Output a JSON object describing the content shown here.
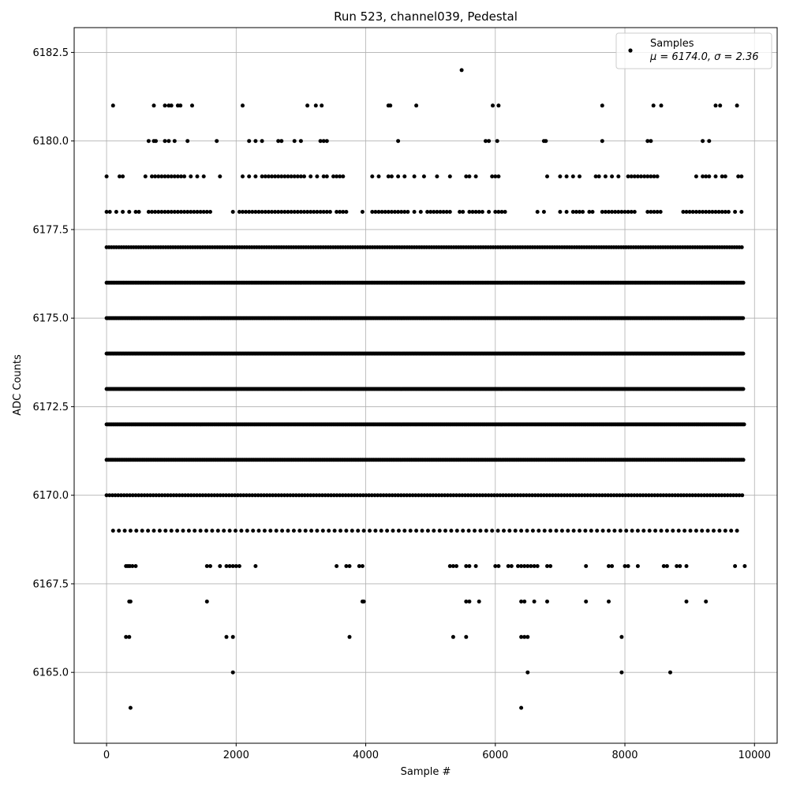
{
  "chart_data": {
    "type": "scatter",
    "title": "Run 523, channel039, Pedestal",
    "xlabel": "Sample #",
    "ylabel": "ADC Counts",
    "xlim": [
      -500,
      10350
    ],
    "ylim": [
      6163.0,
      6183.2
    ],
    "x_ticks": [
      0,
      2000,
      4000,
      6000,
      8000,
      10000
    ],
    "x_tick_labels": [
      "0",
      "2000",
      "4000",
      "6000",
      "8000",
      "10000"
    ],
    "y_ticks": [
      6165.0,
      6167.5,
      6170.0,
      6172.5,
      6175.0,
      6177.5,
      6180.0,
      6182.5
    ],
    "y_tick_labels": [
      "6165.0",
      "6167.5",
      "6170.0",
      "6172.5",
      "6175.0",
      "6177.5",
      "6180.0",
      "6182.5"
    ],
    "grid": true,
    "legend_position": "top-right",
    "legend": {
      "label": "Samples",
      "stats": "μ = 6174.0, σ = 2.36"
    },
    "colors": {
      "marker": "#000000",
      "grid": "#b0b0b0",
      "legend_border": "#cccccc"
    },
    "series": [
      {
        "name": "Samples",
        "points_by_level": {
          "6182": [
            5480
          ],
          "6181": [
            100,
            730,
            900,
            960,
            1000,
            1100,
            1140,
            1320,
            2100,
            3100,
            3230,
            3320,
            4350,
            4380,
            4780,
            5960,
            6050,
            7650,
            8440,
            8560,
            9400,
            9470,
            9730
          ],
          "6180": [
            650,
            730,
            760,
            900,
            960,
            1050,
            1250,
            1700,
            2200,
            2300,
            2400,
            2650,
            2700,
            2900,
            3000,
            3300,
            3350,
            3400,
            4500,
            5850,
            5900,
            6030,
            6750,
            6780,
            7650,
            8350,
            8400,
            9200,
            9300
          ],
          "6179": [
            0,
            200,
            250,
            600,
            700,
            750,
            800,
            850,
            900,
            950,
            1000,
            1050,
            1100,
            1150,
            1200,
            1300,
            1400,
            1500,
            1750,
            2100,
            2200,
            2300,
            2400,
            2450,
            2500,
            2550,
            2600,
            2650,
            2700,
            2750,
            2800,
            2850,
            2900,
            2950,
            3000,
            3050,
            3150,
            3250,
            3350,
            3400,
            3500,
            3550,
            3600,
            3650,
            4100,
            4200,
            4350,
            4400,
            4500,
            4600,
            4750,
            4900,
            5100,
            5300,
            5550,
            5600,
            5700,
            5950,
            6000,
            6050,
            6800,
            7000,
            7100,
            7200,
            7300,
            7550,
            7600,
            7700,
            7800,
            7900,
            8050,
            8100,
            8150,
            8200,
            8250,
            8300,
            8350,
            8400,
            8450,
            8500,
            9100,
            9200,
            9250,
            9300,
            9400,
            9500,
            9550,
            9750,
            9800
          ],
          "6178": [
            0,
            50,
            150,
            250,
            350,
            450,
            500,
            650,
            700,
            750,
            800,
            850,
            900,
            950,
            1000,
            1050,
            1100,
            1150,
            1200,
            1250,
            1300,
            1350,
            1400,
            1450,
            1500,
            1550,
            1600,
            1950,
            2050,
            2100,
            2150,
            2200,
            2250,
            2300,
            2350,
            2400,
            2450,
            2500,
            2550,
            2600,
            2650,
            2700,
            2750,
            2800,
            2850,
            2900,
            2950,
            3000,
            3050,
            3100,
            3150,
            3200,
            3250,
            3300,
            3350,
            3400,
            3450,
            3550,
            3600,
            3650,
            3700,
            3950,
            4100,
            4150,
            4200,
            4250,
            4300,
            4350,
            4400,
            4450,
            4500,
            4550,
            4600,
            4650,
            4750,
            4850,
            4950,
            5000,
            5050,
            5100,
            5150,
            5200,
            5250,
            5300,
            5450,
            5500,
            5600,
            5650,
            5700,
            5750,
            5800,
            5900,
            6000,
            6050,
            6100,
            6150,
            6650,
            6750,
            7000,
            7100,
            7200,
            7250,
            7300,
            7350,
            7450,
            7500,
            7650,
            7700,
            7750,
            7800,
            7850,
            7900,
            7950,
            8000,
            8050,
            8100,
            8150,
            8350,
            8400,
            8450,
            8500,
            8550,
            8900,
            8950,
            9000,
            9050,
            9100,
            9150,
            9200,
            9250,
            9300,
            9350,
            9400,
            9450,
            9500,
            9550,
            9600,
            9700,
            9800
          ],
          "6168": [
            300,
            330,
            360,
            400,
            450,
            1550,
            1600,
            1750,
            1850,
            1900,
            1950,
            2000,
            2050,
            2300,
            3550,
            3700,
            3750,
            3900,
            3950,
            5300,
            5350,
            5400,
            5550,
            5600,
            5700,
            6000,
            6050,
            6200,
            6250,
            6350,
            6400,
            6450,
            6500,
            6550,
            6600,
            6650,
            6800,
            6850,
            7400,
            7750,
            7800,
            8000,
            8050,
            8200,
            8600,
            8650,
            8800,
            8850,
            8950,
            9700,
            9850
          ],
          "6167": [
            350,
            370,
            1550,
            3950,
            3970,
            5550,
            5600,
            5750,
            6400,
            6450,
            6600,
            6800,
            7400,
            7750,
            8950,
            9250
          ],
          "6166": [
            300,
            350,
            1850,
            1950,
            3750,
            5350,
            5550,
            6400,
            6450,
            6500,
            7950
          ],
          "6165": [
            1950,
            6500,
            7950,
            8700
          ],
          "6164": [
            370,
            6400
          ]
        },
        "dense_levels": {
          "6177": {
            "from": 0,
            "to": 9840,
            "step": 38
          },
          "6176": {
            "from": 0,
            "to": 9840,
            "step": 26
          },
          "6175": {
            "from": 0,
            "to": 9840,
            "step": 19
          },
          "6174": {
            "from": 0,
            "to": 9840,
            "step": 17
          },
          "6173": {
            "from": 0,
            "to": 9840,
            "step": 17
          },
          "6172": {
            "from": 0,
            "to": 9840,
            "step": 20
          },
          "6171": {
            "from": 0,
            "to": 9840,
            "step": 28
          },
          "6170": {
            "from": 0,
            "to": 9840,
            "step": 45
          },
          "6169": {
            "from": 100,
            "to": 9800,
            "step": 90
          }
        }
      }
    ]
  }
}
